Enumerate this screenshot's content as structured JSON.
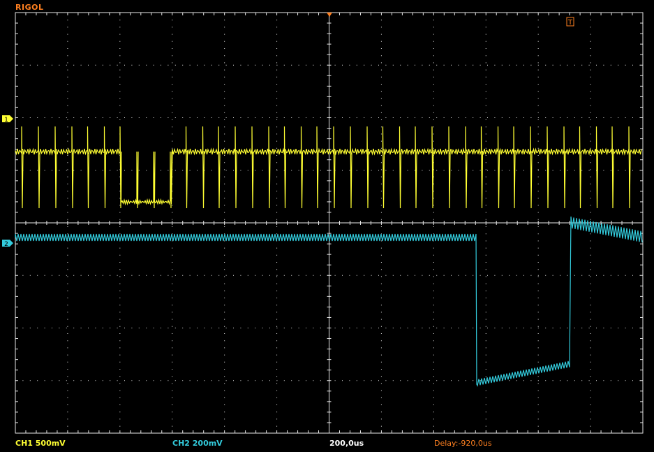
{
  "brand": "RIGOL",
  "colors": {
    "background": "#000000",
    "grid": "#e8e8e8",
    "ch1": "#ffff33",
    "ch2": "#33ccdd",
    "brand": "#ff8020",
    "trigger": "#ff8020",
    "delay": "#ff8020"
  },
  "channels": {
    "ch1": {
      "marker": "1",
      "status": "CH1 500mV"
    },
    "ch2": {
      "marker": "2",
      "status": "CH2 200mV"
    }
  },
  "trigger": {
    "marker": "T"
  },
  "timebase": "200,0us",
  "delay": "Delay:-920,0us",
  "icons": {
    "ch1_marker": "ch1-ground-marker-icon",
    "ch2_marker": "ch2-ground-marker-icon",
    "trigger_marker": "trigger-level-marker-icon",
    "trigger_position": "trigger-position-marker-icon"
  }
}
